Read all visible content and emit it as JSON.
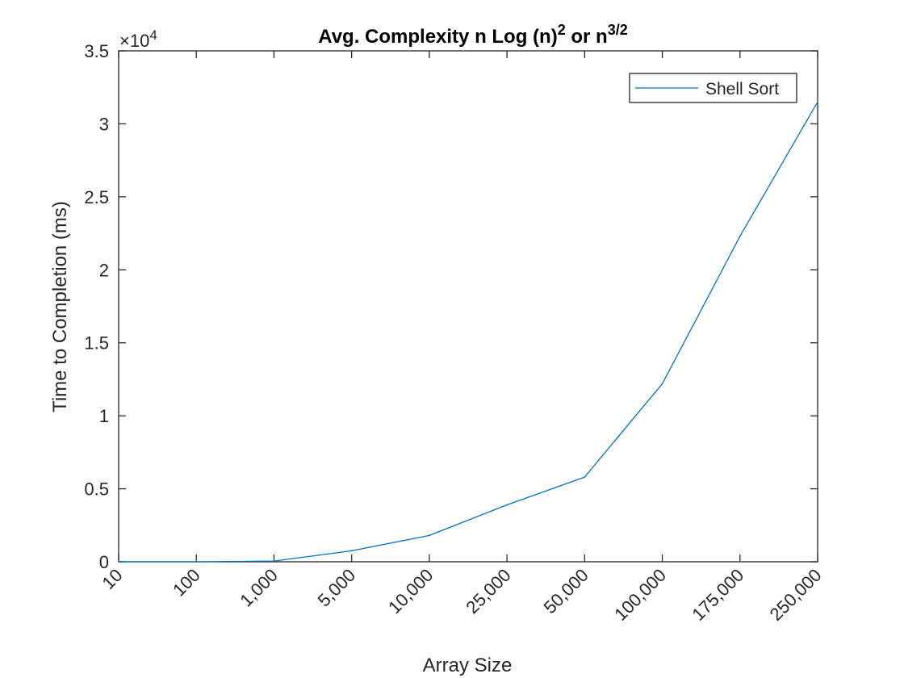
{
  "chart_data": {
    "type": "line",
    "title": {
      "main": "Avg. Complexity n Log (n)",
      "sup1": "2",
      "mid": " or n",
      "sup2": "3/2"
    },
    "xlabel": "Array Size",
    "ylabel": "Time to Completion (ms)",
    "y_exponent": {
      "base": "×10",
      "power": "4"
    },
    "categories": [
      "10",
      "100",
      "1,000",
      "5,000",
      "10,000",
      "25,000",
      "50,000",
      "100,000",
      "175,000",
      "250,000"
    ],
    "ylim": [
      0,
      35000
    ],
    "yticks": [
      0,
      5000,
      10000,
      15000,
      20000,
      25000,
      30000,
      35000
    ],
    "ytick_labels": [
      "0",
      "0.5",
      "1",
      "1.5",
      "2",
      "2.5",
      "3",
      "3.5"
    ],
    "series": [
      {
        "name": "Shell Sort",
        "color": "#0072BD",
        "values": [
          0,
          0,
          50,
          750,
          1800,
          3900,
          5800,
          12200,
          22300,
          31500
        ]
      }
    ],
    "legend_position": "top-right",
    "grid": false
  }
}
